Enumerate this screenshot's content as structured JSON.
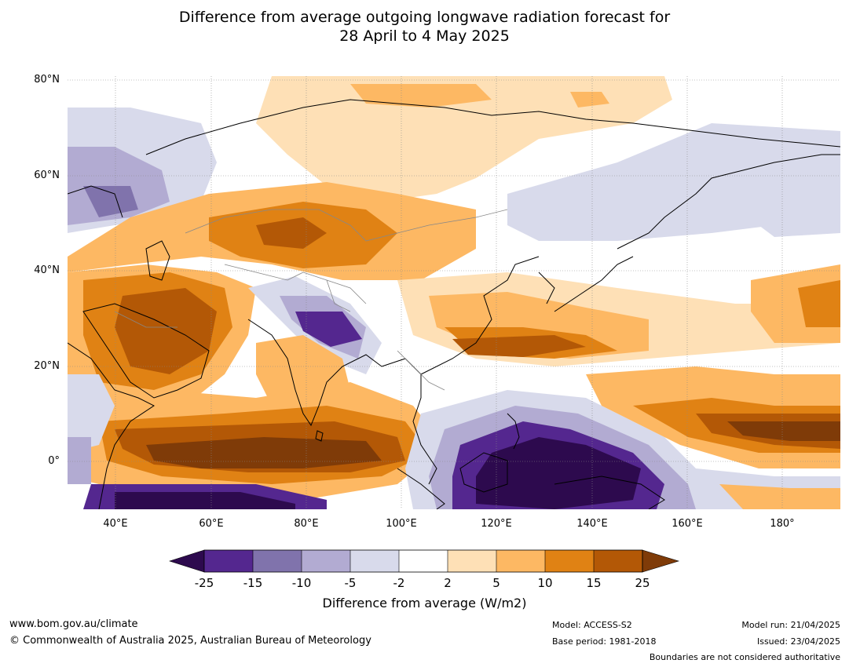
{
  "title_line1": "Difference from average outgoing longwave radiation forecast for",
  "title_line2": "28 April to 4 May 2025",
  "lat_labels": [
    "80°N",
    "60°N",
    "40°N",
    "20°N",
    "0°"
  ],
  "lon_labels": [
    "40°E",
    "60°E",
    "80°E",
    "100°E",
    "120°E",
    "140°E",
    "160°E",
    "180°"
  ],
  "colorbar": {
    "title": "Difference from average (W/m2)",
    "tick_labels": [
      "-25",
      "-15",
      "-10",
      "-5",
      "-2",
      "2",
      "5",
      "10",
      "15",
      "25"
    ],
    "colors": {
      "below_-25": "#2d0a4e",
      "-25_-15": "#54278f",
      "-15_-10": "#8073ac",
      "-10_-5": "#b2abd2",
      "-5_-2": "#d8daeb",
      "-2_2": "#ffffff",
      "2_5": "#fee0b6",
      "5_10": "#fdb863",
      "10_15": "#e08214",
      "15_25": "#b35806",
      "above_25": "#7f3b08"
    }
  },
  "footer": {
    "website": "www.bom.gov.au/climate",
    "copyright": "© Commonwealth of Australia 2025, Australian Bureau of Meteorology",
    "model": "Model: ACCESS-S2",
    "base_period": "Base period: 1981-2018",
    "model_run": "Model run: 21/04/2025",
    "issued": "Issued: 23/04/2025",
    "disclaimer": "Boundaries are not considered authoritative"
  }
}
